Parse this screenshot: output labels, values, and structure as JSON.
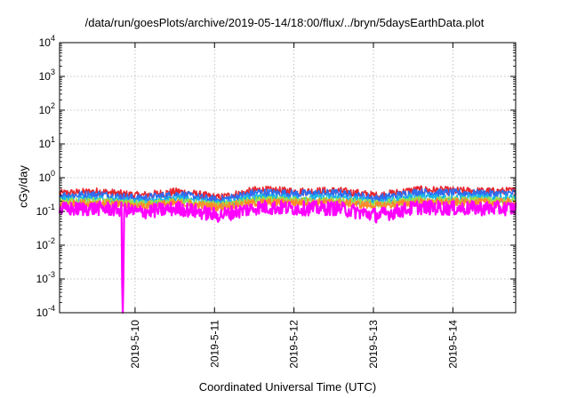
{
  "chart_data": {
    "type": "line",
    "title": "/data/run/goesPlots/archive/2019-05-14/18:00/flux/../bryn/5daysEarthData.plot",
    "xlabel": "Coordinated Universal Time (UTC)",
    "ylabel": "cGy/day",
    "x_range_days": [
      0,
      5.74
    ],
    "x_ticks": [
      {
        "day": 0.95,
        "label": "2019-5-10"
      },
      {
        "day": 1.95,
        "label": "2019-5-11"
      },
      {
        "day": 2.95,
        "label": "2019-5-12"
      },
      {
        "day": 3.95,
        "label": "2019-5-13"
      },
      {
        "day": 4.95,
        "label": "2019-5-14"
      }
    ],
    "y_scale": "log",
    "ylim": [
      0.0001,
      10000
    ],
    "y_ticks": [
      {
        "exp": -4,
        "label": "10",
        "sup": "-4"
      },
      {
        "exp": -3,
        "label": "10",
        "sup": "-3"
      },
      {
        "exp": -2,
        "label": "10",
        "sup": "-2"
      },
      {
        "exp": -1,
        "label": "10",
        "sup": "-1"
      },
      {
        "exp": 0,
        "label": "10",
        "sup": "0"
      },
      {
        "exp": 1,
        "label": "10",
        "sup": "1"
      },
      {
        "exp": 2,
        "label": "10",
        "sup": "2"
      },
      {
        "exp": 3,
        "label": "10",
        "sup": "3"
      },
      {
        "exp": 4,
        "label": "10",
        "sup": "4"
      }
    ],
    "grid": true,
    "legend": "none",
    "series": [
      {
        "color": "#e8262f",
        "days": [
          0,
          0.5,
          1.0,
          1.5,
          2.0,
          2.5,
          3.0,
          3.5,
          4.0,
          4.5,
          5.0,
          5.5,
          5.74
        ],
        "values": [
          0.35,
          0.4,
          0.3,
          0.4,
          0.26,
          0.45,
          0.4,
          0.42,
          0.3,
          0.45,
          0.42,
          0.4,
          0.42
        ]
      },
      {
        "color": "#2f6cf0",
        "days": [
          0,
          0.5,
          1.0,
          1.5,
          2.0,
          2.5,
          3.0,
          3.5,
          4.0,
          4.5,
          5.0,
          5.5,
          5.74
        ],
        "values": [
          0.3,
          0.33,
          0.25,
          0.33,
          0.22,
          0.38,
          0.34,
          0.36,
          0.25,
          0.38,
          0.36,
          0.34,
          0.36
        ]
      },
      {
        "color": "#18b7e8",
        "days": [
          0,
          0.5,
          1.0,
          1.5,
          2.0,
          2.5,
          3.0,
          3.5,
          4.0,
          4.5,
          5.0,
          5.5,
          5.74
        ],
        "values": [
          0.22,
          0.24,
          0.19,
          0.24,
          0.17,
          0.27,
          0.25,
          0.26,
          0.19,
          0.27,
          0.26,
          0.25,
          0.26
        ]
      },
      {
        "color": "#9ee04a",
        "days": [
          0,
          0.5,
          1.0,
          1.5,
          2.0,
          2.5,
          3.0,
          3.5,
          4.0,
          4.5,
          5.0,
          5.5,
          5.74
        ],
        "values": [
          0.19,
          0.2,
          0.17,
          0.2,
          0.15,
          0.22,
          0.21,
          0.21,
          0.17,
          0.22,
          0.21,
          0.21,
          0.21
        ]
      },
      {
        "color": "#ff8a2a",
        "days": [
          0,
          0.5,
          1.0,
          1.5,
          2.0,
          2.5,
          3.0,
          3.5,
          4.0,
          4.5,
          5.0,
          5.5,
          5.74
        ],
        "values": [
          0.17,
          0.18,
          0.15,
          0.18,
          0.14,
          0.19,
          0.19,
          0.19,
          0.15,
          0.19,
          0.19,
          0.19,
          0.19
        ]
      },
      {
        "color": "#ff00ff",
        "days": [
          0,
          0.5,
          0.78,
          0.79,
          0.8,
          0.81,
          1.0,
          1.5,
          2.0,
          2.5,
          3.0,
          3.5,
          4.0,
          4.5,
          5.0,
          5.5,
          5.74
        ],
        "values": [
          0.12,
          0.13,
          0.12,
          0.0001,
          0.0001,
          0.12,
          0.1,
          0.13,
          0.08,
          0.14,
          0.13,
          0.13,
          0.08,
          0.14,
          0.13,
          0.13,
          0.13
        ]
      }
    ]
  }
}
